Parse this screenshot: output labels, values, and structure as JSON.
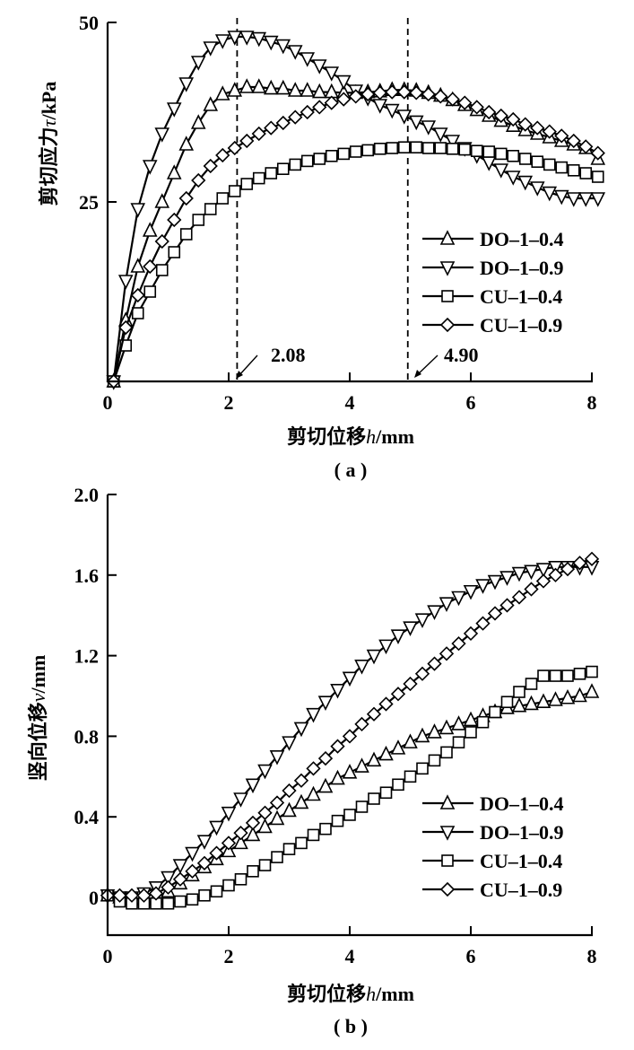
{
  "chart_data": [
    {
      "id": "a",
      "type": "line",
      "panel_label": "( a )",
      "title": "",
      "xlabel_cn": "剪切位移",
      "xlabel_var": "h",
      "xlabel_unit": "/mm",
      "ylabel_cn": "剪切应力",
      "ylabel_var": "τ",
      "ylabel_unit": "/kPa",
      "xlim": [
        0,
        8
      ],
      "ylim": [
        0,
        50
      ],
      "xticks": [
        0,
        2,
        4,
        6,
        8
      ],
      "xtick_labels": [
        "0",
        "2",
        "4",
        "6",
        "8"
      ],
      "yticks": [
        25,
        50
      ],
      "ytick_labels": [
        "25",
        "50"
      ],
      "grid": false,
      "legend_position": "right-middle",
      "annotations": [
        {
          "x": 2.08,
          "label": "2.08",
          "type": "vertical-dashed-line"
        },
        {
          "x": 4.9,
          "label": "4.90",
          "type": "vertical-dashed-line"
        }
      ],
      "series": [
        {
          "name": "DO-1-0.4",
          "marker": "triangle-up",
          "x": [
            0.1,
            0.3,
            0.5,
            0.7,
            0.9,
            1.1,
            1.3,
            1.5,
            1.7,
            1.9,
            2.1,
            2.3,
            2.5,
            2.7,
            2.9,
            3.1,
            3.3,
            3.5,
            3.7,
            3.9,
            4.1,
            4.3,
            4.5,
            4.7,
            4.9,
            5.1,
            5.3,
            5.5,
            5.7,
            5.9,
            6.1,
            6.3,
            6.5,
            6.7,
            6.9,
            7.1,
            7.3,
            7.5,
            7.7,
            7.9,
            8.1
          ],
          "y": [
            0,
            8.5,
            16,
            21,
            25,
            29,
            33,
            36,
            38.5,
            40,
            40.5,
            41,
            41,
            40.8,
            40.8,
            40.5,
            40.5,
            40.3,
            40.3,
            40.2,
            40.2,
            40.3,
            40.4,
            40.6,
            40.6,
            40.5,
            40.2,
            39.8,
            39.2,
            38.5,
            37.8,
            37,
            36.3,
            35.6,
            35,
            34.5,
            34,
            33.5,
            33,
            32.5,
            31
          ]
        },
        {
          "name": "DO-1-0.9",
          "marker": "triangle-down",
          "x": [
            0.1,
            0.3,
            0.5,
            0.7,
            0.9,
            1.1,
            1.3,
            1.5,
            1.7,
            1.9,
            2.1,
            2.3,
            2.5,
            2.7,
            2.9,
            3.1,
            3.3,
            3.5,
            3.7,
            3.9,
            4.1,
            4.3,
            4.5,
            4.7,
            4.9,
            5.1,
            5.3,
            5.5,
            5.7,
            5.9,
            6.1,
            6.3,
            6.5,
            6.7,
            6.9,
            7.1,
            7.3,
            7.5,
            7.7,
            7.9,
            8.1
          ],
          "y": [
            0,
            14,
            24,
            30,
            34.5,
            38,
            41.5,
            44.5,
            46.5,
            47.5,
            48,
            48,
            47.8,
            47.3,
            46.8,
            46,
            45,
            44,
            43,
            41.8,
            40.5,
            39.5,
            38.5,
            37.8,
            37,
            36.2,
            35.5,
            34.5,
            33.5,
            32.5,
            31.5,
            30.5,
            29.5,
            28.5,
            27.8,
            27,
            26.3,
            25.8,
            25.5,
            25.5,
            25.5
          ]
        },
        {
          "name": "CU-1-0.4",
          "marker": "square",
          "x": [
            0.1,
            0.3,
            0.5,
            0.7,
            0.9,
            1.1,
            1.3,
            1.5,
            1.7,
            1.9,
            2.1,
            2.3,
            2.5,
            2.7,
            2.9,
            3.1,
            3.3,
            3.5,
            3.7,
            3.9,
            4.1,
            4.3,
            4.5,
            4.7,
            4.9,
            5.1,
            5.3,
            5.5,
            5.7,
            5.9,
            6.1,
            6.3,
            6.5,
            6.7,
            6.9,
            7.1,
            7.3,
            7.5,
            7.7,
            7.9,
            8.1
          ],
          "y": [
            0,
            5,
            9.5,
            12.5,
            15.5,
            18,
            20.5,
            22.5,
            24,
            25.5,
            26.5,
            27.5,
            28.3,
            29,
            29.6,
            30.2,
            30.7,
            31,
            31.4,
            31.7,
            32,
            32.2,
            32.4,
            32.5,
            32.6,
            32.6,
            32.5,
            32.5,
            32.4,
            32.3,
            32.1,
            32,
            31.7,
            31.4,
            31,
            30.6,
            30.2,
            29.8,
            29.4,
            29,
            28.5
          ]
        },
        {
          "name": "CU-1-0.9",
          "marker": "diamond",
          "x": [
            0.1,
            0.3,
            0.5,
            0.7,
            0.9,
            1.1,
            1.3,
            1.5,
            1.7,
            1.9,
            2.1,
            2.3,
            2.5,
            2.7,
            2.9,
            3.1,
            3.3,
            3.5,
            3.7,
            3.9,
            4.1,
            4.3,
            4.5,
            4.7,
            4.9,
            5.1,
            5.3,
            5.5,
            5.7,
            5.9,
            6.1,
            6.3,
            6.5,
            6.7,
            6.9,
            7.1,
            7.3,
            7.5,
            7.7,
            7.9,
            8.1
          ],
          "y": [
            0,
            7.5,
            12,
            16,
            19.5,
            22.5,
            25.5,
            28,
            30,
            31.5,
            32.5,
            33.5,
            34.5,
            35.3,
            36,
            36.8,
            37.5,
            38.2,
            38.8,
            39.3,
            39.7,
            40,
            40.2,
            40.3,
            40.3,
            40.2,
            40,
            39.7,
            39.3,
            38.8,
            38.2,
            37.5,
            37,
            36.5,
            35.8,
            35.3,
            34.8,
            34.2,
            33.5,
            32.7,
            31.8
          ]
        }
      ]
    },
    {
      "id": "b",
      "type": "line",
      "panel_label": "( b )",
      "title": "",
      "xlabel_cn": "剪切位移",
      "xlabel_var": "h",
      "xlabel_unit": "/mm",
      "ylabel_cn": "竖向位移",
      "ylabel_var": "v",
      "ylabel_unit": "/mm",
      "xlim": [
        0,
        8
      ],
      "ylim": [
        -0.18,
        2.0
      ],
      "xticks": [
        0,
        2,
        4,
        6,
        8
      ],
      "xtick_labels": [
        "0",
        "2",
        "4",
        "6",
        "8"
      ],
      "yticks": [
        0,
        0.4,
        0.8,
        1.2,
        1.6,
        2.0
      ],
      "ytick_labels": [
        "0",
        "0.4",
        "0.8",
        "1.2",
        "1.6",
        "2.0"
      ],
      "grid": false,
      "legend_position": "lower-right",
      "series": [
        {
          "name": "DO-1-0.4",
          "marker": "triangle-up",
          "x": [
            0,
            0.2,
            0.4,
            0.6,
            0.8,
            1.0,
            1.2,
            1.4,
            1.6,
            1.8,
            2.0,
            2.2,
            2.4,
            2.6,
            2.8,
            3.0,
            3.2,
            3.4,
            3.6,
            3.8,
            4.0,
            4.2,
            4.4,
            4.6,
            4.8,
            5.0,
            5.2,
            5.4,
            5.6,
            5.8,
            6.0,
            6.2,
            6.4,
            6.6,
            6.8,
            7.0,
            7.2,
            7.4,
            7.6,
            7.8,
            8.0
          ],
          "y": [
            0.01,
            0.0,
            -0.01,
            -0.01,
            0.0,
            0.03,
            0.07,
            0.11,
            0.15,
            0.19,
            0.23,
            0.27,
            0.31,
            0.35,
            0.39,
            0.43,
            0.47,
            0.51,
            0.55,
            0.59,
            0.62,
            0.65,
            0.68,
            0.71,
            0.74,
            0.77,
            0.8,
            0.82,
            0.84,
            0.86,
            0.88,
            0.9,
            0.92,
            0.94,
            0.95,
            0.96,
            0.97,
            0.98,
            0.99,
            1.0,
            1.02
          ]
        },
        {
          "name": "DO-1-0.9",
          "marker": "triangle-down",
          "x": [
            0,
            0.2,
            0.4,
            0.6,
            0.8,
            1.0,
            1.2,
            1.4,
            1.6,
            1.8,
            2.0,
            2.2,
            2.4,
            2.6,
            2.8,
            3.0,
            3.2,
            3.4,
            3.6,
            3.8,
            4.0,
            4.2,
            4.4,
            4.6,
            4.8,
            5.0,
            5.2,
            5.4,
            5.6,
            5.8,
            6.0,
            6.2,
            6.4,
            6.6,
            6.8,
            7.0,
            7.2,
            7.4,
            7.6,
            7.8,
            8.0
          ],
          "y": [
            0.01,
            0.0,
            0.0,
            0.02,
            0.05,
            0.1,
            0.16,
            0.22,
            0.28,
            0.35,
            0.42,
            0.49,
            0.56,
            0.63,
            0.7,
            0.77,
            0.84,
            0.91,
            0.97,
            1.03,
            1.09,
            1.15,
            1.2,
            1.25,
            1.3,
            1.34,
            1.38,
            1.42,
            1.46,
            1.49,
            1.52,
            1.55,
            1.57,
            1.59,
            1.61,
            1.62,
            1.63,
            1.64,
            1.64,
            1.64,
            1.64
          ]
        },
        {
          "name": "CU-1-0.4",
          "marker": "square",
          "x": [
            0,
            0.2,
            0.4,
            0.6,
            0.8,
            1.0,
            1.2,
            1.4,
            1.6,
            1.8,
            2.0,
            2.2,
            2.4,
            2.6,
            2.8,
            3.0,
            3.2,
            3.4,
            3.6,
            3.8,
            4.0,
            4.2,
            4.4,
            4.6,
            4.8,
            5.0,
            5.2,
            5.4,
            5.6,
            5.8,
            6.0,
            6.2,
            6.4,
            6.6,
            6.8,
            7.0,
            7.2,
            7.4,
            7.6,
            7.8,
            8.0
          ],
          "y": [
            0.01,
            -0.02,
            -0.03,
            -0.03,
            -0.03,
            -0.03,
            -0.02,
            -0.01,
            0.01,
            0.03,
            0.06,
            0.09,
            0.13,
            0.16,
            0.2,
            0.24,
            0.27,
            0.31,
            0.34,
            0.38,
            0.41,
            0.45,
            0.49,
            0.52,
            0.56,
            0.6,
            0.64,
            0.68,
            0.72,
            0.77,
            0.82,
            0.87,
            0.92,
            0.97,
            1.02,
            1.06,
            1.1,
            1.1,
            1.1,
            1.11,
            1.12
          ]
        },
        {
          "name": "CU-1-0.9",
          "marker": "diamond",
          "x": [
            0,
            0.2,
            0.4,
            0.6,
            0.8,
            1.0,
            1.2,
            1.4,
            1.6,
            1.8,
            2.0,
            2.2,
            2.4,
            2.6,
            2.8,
            3.0,
            3.2,
            3.4,
            3.6,
            3.8,
            4.0,
            4.2,
            4.4,
            4.6,
            4.8,
            5.0,
            5.2,
            5.4,
            5.6,
            5.8,
            6.0,
            6.2,
            6.4,
            6.6,
            6.8,
            7.0,
            7.2,
            7.4,
            7.6,
            7.8,
            8.0
          ],
          "y": [
            0.01,
            0.01,
            0.01,
            0.01,
            0.02,
            0.05,
            0.09,
            0.13,
            0.17,
            0.22,
            0.27,
            0.32,
            0.37,
            0.42,
            0.47,
            0.53,
            0.58,
            0.64,
            0.69,
            0.75,
            0.8,
            0.86,
            0.91,
            0.96,
            1.01,
            1.06,
            1.11,
            1.16,
            1.21,
            1.26,
            1.31,
            1.36,
            1.41,
            1.45,
            1.49,
            1.53,
            1.57,
            1.6,
            1.63,
            1.66,
            1.68
          ]
        }
      ]
    }
  ]
}
